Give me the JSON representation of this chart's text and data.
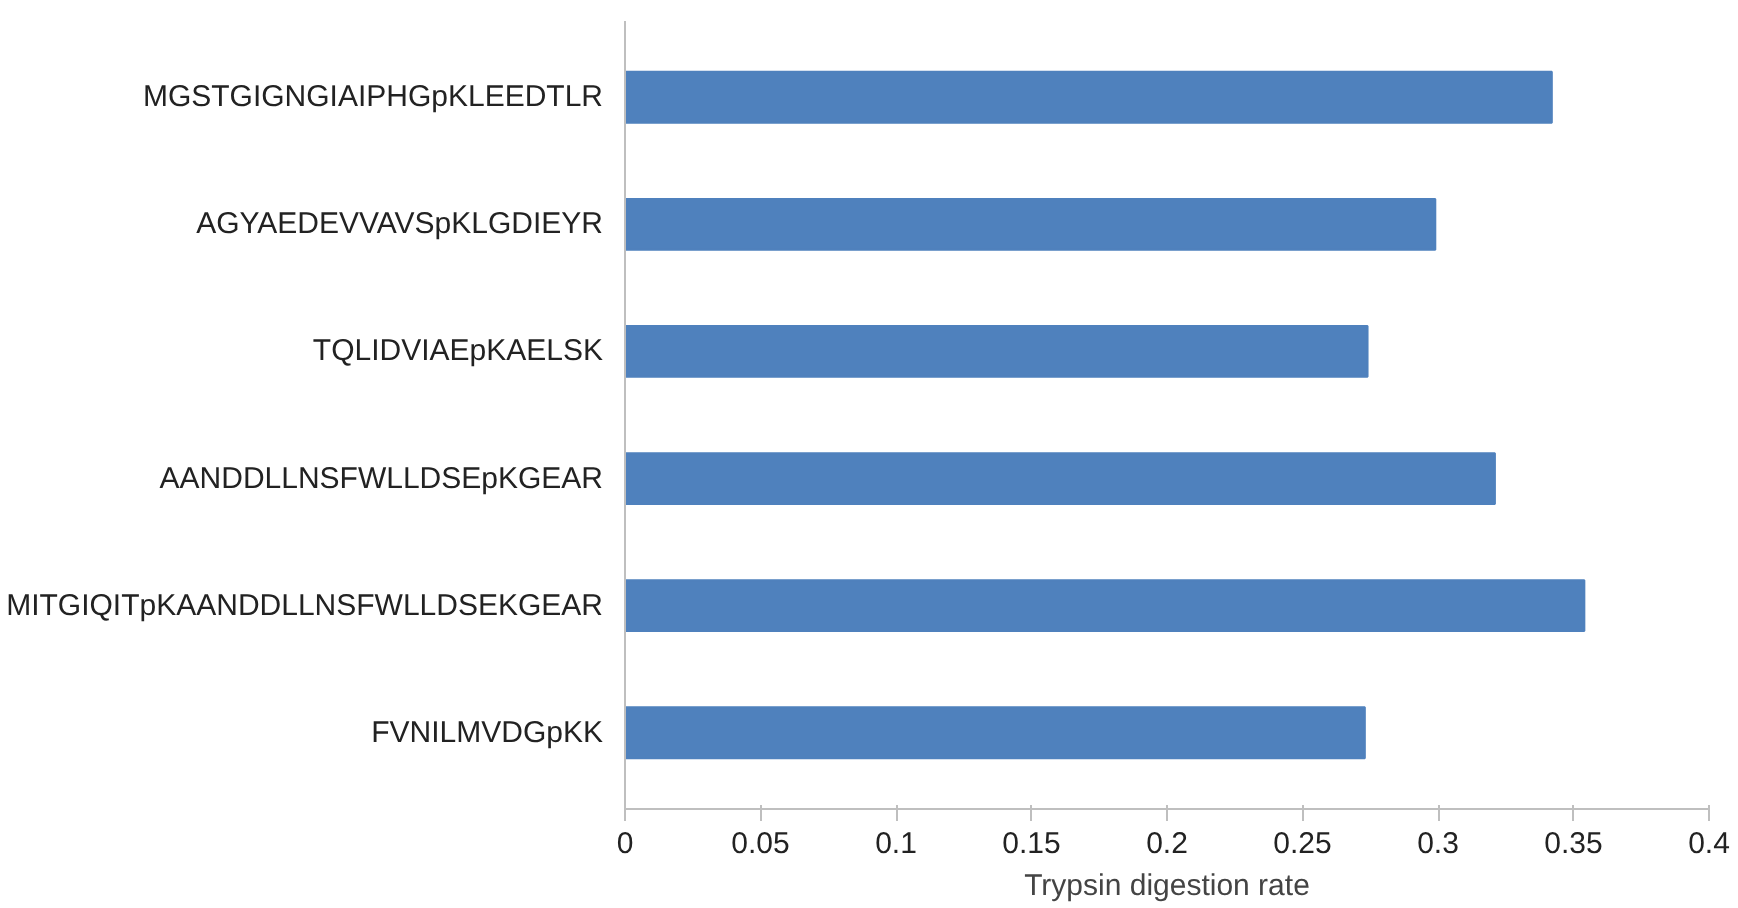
{
  "chart_data": {
    "type": "bar",
    "orientation": "horizontal",
    "xlabel": "Trypsin digestion rate",
    "categories": [
      "MGSTGIGNGIAIPHGpKLEEDTLR",
      "AGYAEDEVVAVSpKLGDIEYR",
      "TQLIDVIAEpKAELSK",
      "AANDDLLNSFWLLDSEpKGEAR",
      "MITGIQITpKAANDDLLNSFWLLDSEKGEAR",
      "FVNILMVDGpKK"
    ],
    "values": [
      0.342,
      0.299,
      0.274,
      0.321,
      0.354,
      0.273
    ],
    "color": "#4f81bd",
    "xlim": [
      0,
      0.4
    ],
    "xticks": [
      0,
      0.05,
      0.1,
      0.15,
      0.2,
      0.25,
      0.3,
      0.35,
      0.4
    ],
    "grid": false
  }
}
